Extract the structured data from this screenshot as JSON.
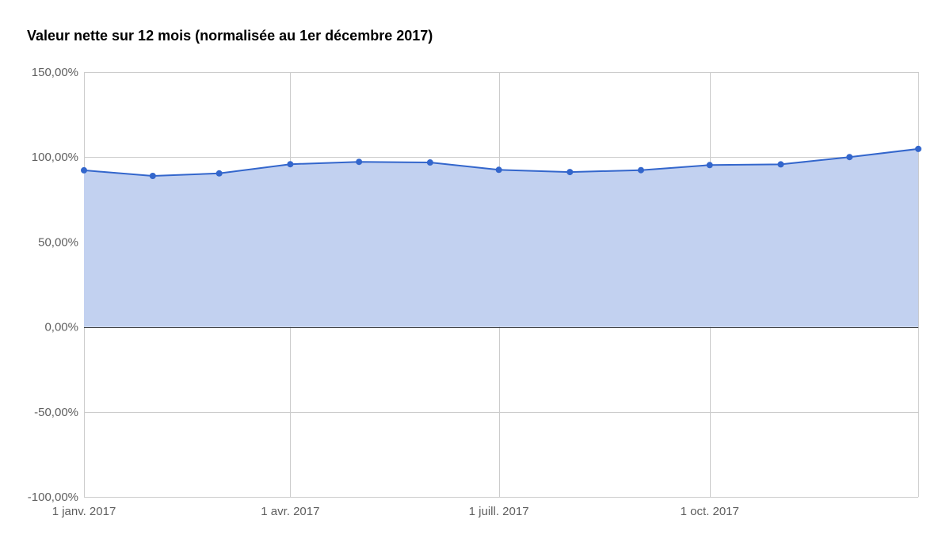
{
  "chart_data": {
    "type": "area",
    "title": "Valeur nette sur 12 mois (normalisée au 1er décembre 2017)",
    "xlabel": "",
    "ylabel": "",
    "x_axis_type": "date",
    "xlim": [
      "2017-01-01",
      "2017-12-31"
    ],
    "ylim": [
      -100,
      150
    ],
    "y_ticks": [
      150,
      100,
      50,
      0,
      -50,
      -100
    ],
    "y_tick_labels": [
      "150,00%",
      "100,00%",
      "50,00%",
      "0,00%",
      "-50,00%",
      "-100,00%"
    ],
    "x_ticks": [
      "2017-01-01",
      "2017-04-01",
      "2017-07-01",
      "2017-10-01"
    ],
    "x_tick_labels": [
      "1 janv. 2017",
      "1 avr. 2017",
      "1 juill. 2017",
      "1 oct. 2017"
    ],
    "grid": true,
    "legend": "none",
    "series": [
      {
        "x": [
          "2017-01-01",
          "2017-01-31",
          "2017-03-01",
          "2017-04-01",
          "2017-05-01",
          "2017-06-01",
          "2017-07-01",
          "2017-08-01",
          "2017-09-01",
          "2017-10-01",
          "2017-11-01",
          "2017-12-01",
          "2017-12-31"
        ],
        "values": [
          92.2,
          88.9,
          90.4,
          95.8,
          97.2,
          96.8,
          92.5,
          91.2,
          92.3,
          95.3,
          95.7,
          100.0,
          104.8
        ]
      }
    ],
    "colors": {
      "line": "#3366cc",
      "fill": "#c2d1f0",
      "grid": "#cccccc",
      "zero_line": "#333333",
      "tick_text": "#5f5f5f",
      "title_text": "#000000"
    }
  }
}
